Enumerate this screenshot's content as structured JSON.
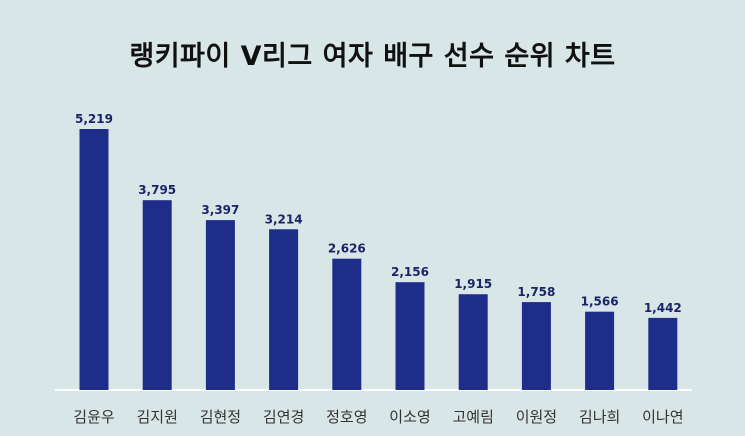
{
  "chart_data": {
    "type": "bar",
    "title": "랭키파이 V리그 여자 배구 선수 순위 차트",
    "categories": [
      "김윤우",
      "김지원",
      "김현정",
      "김연경",
      "정호영",
      "이소영",
      "고예림",
      "이원정",
      "김나희",
      "이나연"
    ],
    "values": [
      5219,
      3795,
      3397,
      3214,
      2626,
      2156,
      1915,
      1758,
      1566,
      1442
    ],
    "value_labels": [
      "5,219",
      "3,795",
      "3,397",
      "3,214",
      "2,626",
      "2,156",
      "1,915",
      "1,758",
      "1,566",
      "1,442"
    ],
    "xlabel": "",
    "ylabel": "",
    "ylim": [
      0,
      5219
    ],
    "grid": false,
    "legend": "none",
    "colors": {
      "bar": "#1f2d8a",
      "value_label": "#1a2466",
      "category_label": "#333333",
      "baseline": "#ffffff",
      "background": "#d9e6e7"
    }
  }
}
